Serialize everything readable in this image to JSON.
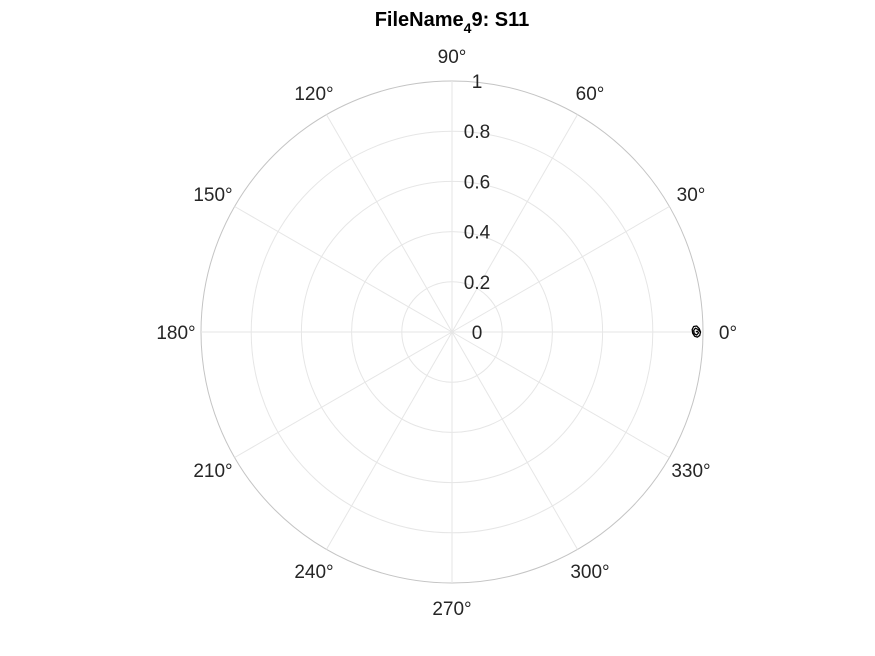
{
  "chart_data": {
    "type": "polar-line",
    "title": {
      "prefix": "FileName",
      "subscript": "4",
      "suffix": "9: S11"
    },
    "theta_unit": "degrees",
    "theta_ticks": [
      0,
      30,
      60,
      90,
      120,
      150,
      180,
      210,
      240,
      270,
      300,
      330
    ],
    "theta_tick_labels": [
      "0°",
      "30°",
      "60°",
      "90°",
      "120°",
      "150°",
      "180°",
      "210°",
      "240°",
      "270°",
      "300°",
      "330°"
    ],
    "r_ticks": [
      0,
      0.2,
      0.4,
      0.6,
      0.8,
      1
    ],
    "r_tick_labels": [
      "0",
      "0.2",
      "0.4",
      "0.6",
      "0.8",
      "1"
    ],
    "r_lim": [
      0,
      1
    ],
    "grid": true,
    "series": [
      {
        "color": "#000000",
        "points": [
          {
            "theta": 0.0,
            "r": 0.99
          },
          {
            "theta": 0.8,
            "r": 0.985
          },
          {
            "theta": 1.4,
            "r": 0.975
          },
          {
            "theta": 1.3,
            "r": 0.963
          },
          {
            "theta": 0.6,
            "r": 0.957
          },
          {
            "theta": -0.3,
            "r": 0.959
          },
          {
            "theta": -1.0,
            "r": 0.967
          },
          {
            "theta": -1.2,
            "r": 0.978
          },
          {
            "theta": -0.8,
            "r": 0.987
          },
          {
            "theta": 0.0,
            "r": 0.99
          },
          {
            "theta": 0.6,
            "r": 0.98
          },
          {
            "theta": 0.9,
            "r": 0.97
          },
          {
            "theta": 0.4,
            "r": 0.963
          },
          {
            "theta": -0.4,
            "r": 0.965
          },
          {
            "theta": -0.7,
            "r": 0.975
          },
          {
            "theta": -0.2,
            "r": 0.982
          },
          {
            "theta": 0.2,
            "r": 0.977
          },
          {
            "theta": 0.0,
            "r": 0.972
          }
        ]
      }
    ]
  }
}
